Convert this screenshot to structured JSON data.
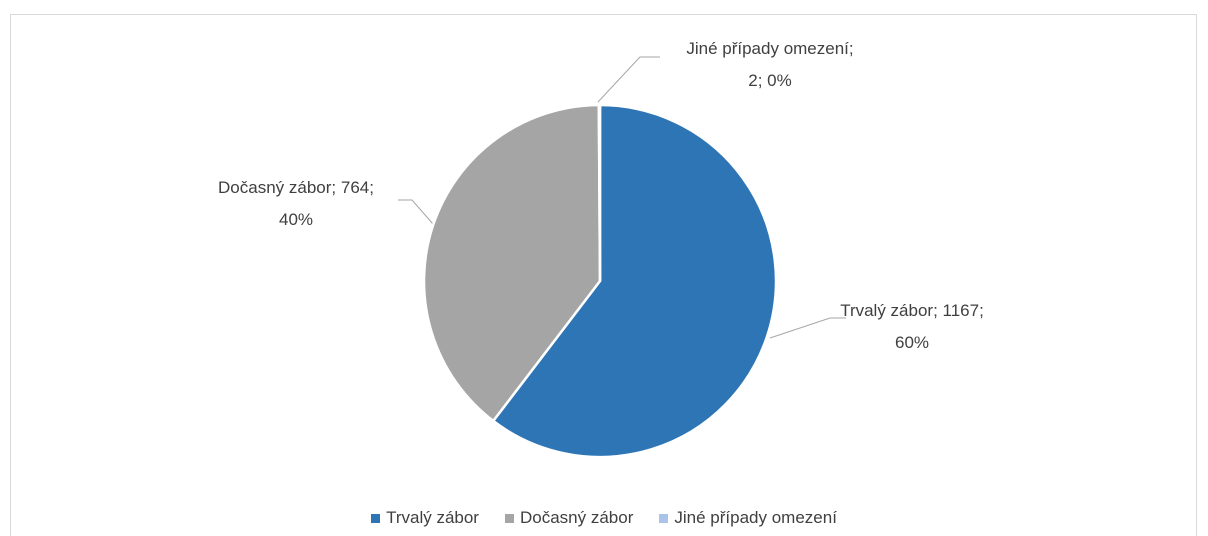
{
  "chart_data": {
    "type": "pie",
    "categories": [
      "Trvalý zábor",
      "Dočasný zábor",
      "Jiné případy omezení"
    ],
    "values": [
      1167,
      764,
      2
    ],
    "value_labels": [
      "Trvalý zábor; 1167; 60%",
      "Dočasný zábor; 764; 40%",
      "Jiné případy omezení; 2; 0%"
    ],
    "colors": [
      "#2e75b6",
      "#a5a5a5",
      "#a9c4e8"
    ],
    "legend": "bottom"
  }
}
